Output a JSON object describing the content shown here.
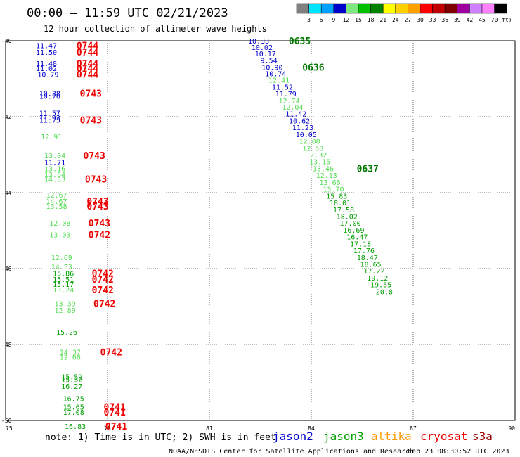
{
  "chart_data": {
    "type": "scatter",
    "title": "00:00 – 11:59 UTC 02/21/2023",
    "subtitle": "12 hour collection of altimeter wave heights",
    "units_label": "(ft)",
    "xlim": [
      75,
      90
    ],
    "ylim": [
      -50,
      -40
    ],
    "x_ticks": [
      "75",
      "78",
      "81",
      "84",
      "87",
      "90"
    ],
    "y_ticks": [
      "-40",
      "-42",
      "-44",
      "-46",
      "-48",
      "-50"
    ],
    "grid": true,
    "color_scale": {
      "labels": [
        "3",
        "6",
        "9",
        "12",
        "15",
        "18",
        "21",
        "24",
        "27",
        "30",
        "33",
        "36",
        "39",
        "42",
        "45",
        "70"
      ],
      "colors": [
        "#808080",
        "#00e5ff",
        "#00a0ff",
        "#0000cc",
        "#7de87d",
        "#00c000",
        "#008000",
        "#ffff00",
        "#ffd000",
        "#ffa000",
        "#ff0000",
        "#c00000",
        "#800000",
        "#a000a0",
        "#d080ff",
        "#ff80ff",
        "#000000"
      ]
    },
    "series": [
      {
        "name": "jason2",
        "color": "#0000cc"
      },
      {
        "name": "jason3",
        "color": "#00a000"
      },
      {
        "name": "altika",
        "color": "#ff9900"
      },
      {
        "name": "cryosat",
        "color": "#ee0000"
      },
      {
        "name": "s3a",
        "color": "#990000"
      }
    ],
    "points": [
      {
        "x": 76.2,
        "y": -40.12,
        "v": "11.47",
        "c": "#0000cc"
      },
      {
        "x": 76.2,
        "y": -40.3,
        "v": "11.50",
        "c": "#0000cc"
      },
      {
        "x": 76.2,
        "y": -40.59,
        "v": "11.48",
        "c": "#0000cc"
      },
      {
        "x": 76.2,
        "y": -40.72,
        "v": "11.02",
        "c": "#0000cc"
      },
      {
        "x": 76.25,
        "y": -40.88,
        "v": "10.79",
        "c": "#0000cc"
      },
      {
        "x": 76.3,
        "y": -41.38,
        "v": "10.38",
        "c": "#0000cc"
      },
      {
        "x": 76.3,
        "y": -41.45,
        "v": "10.76",
        "c": "#0000cc"
      },
      {
        "x": 76.3,
        "y": -41.9,
        "v": "11.57",
        "c": "#0000cc"
      },
      {
        "x": 76.3,
        "y": -42.02,
        "v": "11.93",
        "c": "#0000cc"
      },
      {
        "x": 76.3,
        "y": -42.08,
        "v": "11.75",
        "c": "#0000cc"
      },
      {
        "x": 76.35,
        "y": -42.52,
        "v": "12.91",
        "c": "#55dd55"
      },
      {
        "x": 76.45,
        "y": -43.02,
        "v": "13.04",
        "c": "#55dd55"
      },
      {
        "x": 76.45,
        "y": -43.19,
        "v": "11.71",
        "c": "#0000cc"
      },
      {
        "x": 76.45,
        "y": -43.36,
        "v": "13.16",
        "c": "#55dd55"
      },
      {
        "x": 76.45,
        "y": -43.52,
        "v": "13.64",
        "c": "#55dd55"
      },
      {
        "x": 76.45,
        "y": -43.64,
        "v": "14.33",
        "c": "#55dd55"
      },
      {
        "x": 76.5,
        "y": -44.06,
        "v": "12.67",
        "c": "#55dd55"
      },
      {
        "x": 76.5,
        "y": -44.22,
        "v": "14.67",
        "c": "#55dd55"
      },
      {
        "x": 76.5,
        "y": -44.35,
        "v": "13.58",
        "c": "#55dd55"
      },
      {
        "x": 76.6,
        "y": -44.8,
        "v": "12.08",
        "c": "#55dd55"
      },
      {
        "x": 76.6,
        "y": -45.1,
        "v": "13.03",
        "c": "#55dd55"
      },
      {
        "x": 76.65,
        "y": -45.7,
        "v": "12.69",
        "c": "#55dd55"
      },
      {
        "x": 76.65,
        "y": -45.94,
        "v": "14.53",
        "c": "#55dd55"
      },
      {
        "x": 76.7,
        "y": -46.12,
        "v": "15.86",
        "c": "#00a000"
      },
      {
        "x": 76.7,
        "y": -46.28,
        "v": "15.51",
        "c": "#00a000"
      },
      {
        "x": 76.7,
        "y": -46.41,
        "v": "15.17",
        "c": "#00a000"
      },
      {
        "x": 76.7,
        "y": -46.56,
        "v": "13.24",
        "c": "#55dd55"
      },
      {
        "x": 76.75,
        "y": -46.92,
        "v": "13.39",
        "c": "#55dd55"
      },
      {
        "x": 76.75,
        "y": -47.09,
        "v": "12.89",
        "c": "#55dd55"
      },
      {
        "x": 76.8,
        "y": -47.67,
        "v": "15.26",
        "c": "#00a000"
      },
      {
        "x": 76.9,
        "y": -48.19,
        "v": "14.37",
        "c": "#55dd55"
      },
      {
        "x": 76.9,
        "y": -48.32,
        "v": "12.68",
        "c": "#55dd55"
      },
      {
        "x": 76.95,
        "y": -48.84,
        "v": "15.59",
        "c": "#00a000"
      },
      {
        "x": 76.95,
        "y": -48.92,
        "v": "15.32",
        "c": "#00a000"
      },
      {
        "x": 76.95,
        "y": -49.09,
        "v": "16.27",
        "c": "#00a000"
      },
      {
        "x": 77.0,
        "y": -49.42,
        "v": "16.75",
        "c": "#00a000"
      },
      {
        "x": 77.0,
        "y": -49.64,
        "v": "15.65",
        "c": "#00a000"
      },
      {
        "x": 77.0,
        "y": -49.78,
        "v": "17.08",
        "c": "#00a000"
      },
      {
        "x": 77.05,
        "y": -50.15,
        "v": "16.83",
        "c": "#00a000"
      },
      {
        "x": 82.45,
        "y": -40.0,
        "v": "10.33",
        "c": "#0000cc"
      },
      {
        "x": 82.55,
        "y": -40.17,
        "v": "10.02",
        "c": "#0000cc"
      },
      {
        "x": 82.65,
        "y": -40.33,
        "v": "10.17",
        "c": "#0000cc"
      },
      {
        "x": 82.75,
        "y": -40.51,
        "v": "9.54",
        "c": "#0000cc"
      },
      {
        "x": 82.85,
        "y": -40.69,
        "v": "10.90",
        "c": "#0000cc"
      },
      {
        "x": 82.95,
        "y": -40.86,
        "v": "10.74",
        "c": "#0000cc"
      },
      {
        "x": 83.05,
        "y": -41.03,
        "v": "12.41",
        "c": "#55dd55"
      },
      {
        "x": 83.15,
        "y": -41.21,
        "v": "11.52",
        "c": "#0000cc"
      },
      {
        "x": 83.25,
        "y": -41.39,
        "v": "11.79",
        "c": "#0000cc"
      },
      {
        "x": 83.35,
        "y": -41.57,
        "v": "12.74",
        "c": "#55dd55"
      },
      {
        "x": 83.45,
        "y": -41.74,
        "v": "12.04",
        "c": "#55dd55"
      },
      {
        "x": 83.55,
        "y": -41.92,
        "v": "11.42",
        "c": "#0000cc"
      },
      {
        "x": 83.65,
        "y": -42.1,
        "v": "10.62",
        "c": "#0000cc"
      },
      {
        "x": 83.75,
        "y": -42.28,
        "v": "11.23",
        "c": "#0000cc"
      },
      {
        "x": 83.85,
        "y": -42.46,
        "v": "10.05",
        "c": "#0000cc"
      },
      {
        "x": 83.95,
        "y": -42.64,
        "v": "12.08",
        "c": "#55dd55"
      },
      {
        "x": 84.05,
        "y": -42.82,
        "v": "12.53",
        "c": "#55dd55"
      },
      {
        "x": 84.15,
        "y": -43.0,
        "v": "12.32",
        "c": "#55dd55"
      },
      {
        "x": 84.25,
        "y": -43.18,
        "v": "13.15",
        "c": "#55dd55"
      },
      {
        "x": 84.35,
        "y": -43.36,
        "v": "13.46",
        "c": "#55dd55"
      },
      {
        "x": 84.45,
        "y": -43.54,
        "v": "12.13",
        "c": "#55dd55"
      },
      {
        "x": 84.55,
        "y": -43.72,
        "v": "13.66",
        "c": "#55dd55"
      },
      {
        "x": 84.65,
        "y": -43.9,
        "v": "13.70",
        "c": "#55dd55"
      },
      {
        "x": 84.75,
        "y": -44.08,
        "v": "15.83",
        "c": "#00a000"
      },
      {
        "x": 84.85,
        "y": -44.26,
        "v": "18.01",
        "c": "#00a000"
      },
      {
        "x": 84.95,
        "y": -44.44,
        "v": "17.58",
        "c": "#00a000"
      },
      {
        "x": 85.05,
        "y": -44.62,
        "v": "18.02",
        "c": "#00a000"
      },
      {
        "x": 85.15,
        "y": -44.8,
        "v": "17.00",
        "c": "#00a000"
      },
      {
        "x": 85.25,
        "y": -44.98,
        "v": "16.69",
        "c": "#00a000"
      },
      {
        "x": 85.35,
        "y": -45.16,
        "v": "16.47",
        "c": "#00a000"
      },
      {
        "x": 85.45,
        "y": -45.34,
        "v": "17.18",
        "c": "#00a000"
      },
      {
        "x": 85.55,
        "y": -45.52,
        "v": "17.76",
        "c": "#00a000"
      },
      {
        "x": 85.65,
        "y": -45.7,
        "v": "18.47",
        "c": "#00a000"
      },
      {
        "x": 85.75,
        "y": -45.88,
        "v": "18.65",
        "c": "#00a000"
      },
      {
        "x": 85.85,
        "y": -46.06,
        "v": "17.22",
        "c": "#00a000"
      },
      {
        "x": 85.95,
        "y": -46.24,
        "v": "19.12",
        "c": "#00a000"
      },
      {
        "x": 86.05,
        "y": -46.42,
        "v": "19.55",
        "c": "#00a000"
      },
      {
        "x": 86.15,
        "y": -46.6,
        "v": "20.8",
        "c": "#00a000"
      }
    ],
    "pass_labels": [
      {
        "x": 76.3,
        "y": -40.12,
        "v": "0744",
        "c": "#ee0000"
      },
      {
        "x": 76.3,
        "y": -40.3,
        "v": "0744",
        "c": "#ee0000"
      },
      {
        "x": 76.3,
        "y": -40.59,
        "v": "0744",
        "c": "#ee0000"
      },
      {
        "x": 76.3,
        "y": -40.72,
        "v": "0744",
        "c": "#ee0000"
      },
      {
        "x": 76.3,
        "y": -40.88,
        "v": "0744",
        "c": "#ee0000"
      },
      {
        "x": 76.4,
        "y": -41.38,
        "v": "0743",
        "c": "#ee0000"
      },
      {
        "x": 76.4,
        "y": -42.08,
        "v": "0743",
        "c": "#ee0000"
      },
      {
        "x": 76.5,
        "y": -43.02,
        "v": "0743",
        "c": "#ee0000"
      },
      {
        "x": 76.55,
        "y": -43.64,
        "v": "0743",
        "c": "#ee0000"
      },
      {
        "x": 76.6,
        "y": -44.22,
        "v": "0743",
        "c": "#ee0000"
      },
      {
        "x": 76.6,
        "y": -44.35,
        "v": "0743",
        "c": "#ee0000"
      },
      {
        "x": 76.65,
        "y": -44.8,
        "v": "0743",
        "c": "#ee0000"
      },
      {
        "x": 76.65,
        "y": -45.1,
        "v": "0742",
        "c": "#ee0000"
      },
      {
        "x": 76.75,
        "y": -46.12,
        "v": "0742",
        "c": "#ee0000"
      },
      {
        "x": 76.75,
        "y": -46.28,
        "v": "0742",
        "c": "#ee0000"
      },
      {
        "x": 76.75,
        "y": -46.56,
        "v": "0742",
        "c": "#ee0000"
      },
      {
        "x": 76.8,
        "y": -46.92,
        "v": "0742",
        "c": "#ee0000"
      },
      {
        "x": 77.0,
        "y": -48.19,
        "v": "0742",
        "c": "#ee0000"
      },
      {
        "x": 77.1,
        "y": -49.64,
        "v": "0741",
        "c": "#ee0000"
      },
      {
        "x": 77.1,
        "y": -49.78,
        "v": "0741",
        "c": "#ee0000"
      },
      {
        "x": 77.15,
        "y": -50.15,
        "v": "0741",
        "c": "#ee0000"
      },
      {
        "x": 82.55,
        "y": -40.0,
        "v": "0635",
        "c": "#007700"
      },
      {
        "x": 82.95,
        "y": -40.69,
        "v": "0636",
        "c": "#007700"
      },
      {
        "x": 84.55,
        "y": -43.36,
        "v": "0637",
        "c": "#007700"
      }
    ]
  },
  "footer": {
    "note": "note: 1) Time is in UTC; 2) SWH is in feet",
    "credit": "NOAA/NESDIS Center for Satellite Applications and Research",
    "generated": "Feb 23 08:30:52 UTC 2023"
  }
}
